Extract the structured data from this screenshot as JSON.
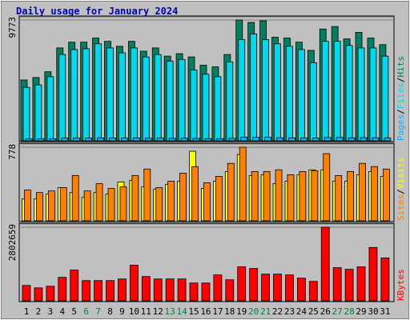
{
  "chart_data": [
    {
      "type": "bar",
      "title": "Daily usage for January 2024",
      "ylim": [
        0,
        9773
      ],
      "yticks": [
        9773
      ],
      "legend_separator": "/",
      "series": [
        {
          "name": "Hits",
          "color": "#008060",
          "values": [
            4921,
            5120,
            5586,
            7514,
            7980,
            7980,
            8312,
            8046,
            7647,
            8046,
            7248,
            7514,
            6849,
            7049,
            6783,
            6118,
            5985,
            6982,
            9773,
            9576,
            9709,
            8379,
            8312,
            7980,
            7315,
            9044,
            9243,
            8246,
            8778,
            8312,
            7780
          ]
        },
        {
          "name": "Files",
          "color": "#00d8f0",
          "values": [
            4322,
            4522,
            5187,
            6983,
            7382,
            7448,
            7847,
            7515,
            7116,
            7515,
            6783,
            6983,
            6451,
            6584,
            5719,
            5387,
            5187,
            6384,
            8180,
            8645,
            8180,
            7847,
            7648,
            7382,
            6318,
            8047,
            8047,
            7714,
            7515,
            7515,
            6850
          ]
        },
        {
          "name": "Pages",
          "color": "#00b8ff",
          "values": [
            150,
            160,
            170,
            220,
            230,
            230,
            240,
            235,
            225,
            235,
            210,
            220,
            200,
            205,
            195,
            180,
            175,
            200,
            290,
            280,
            285,
            245,
            240,
            230,
            215,
            265,
            270,
            240,
            255,
            240,
            225
          ]
        }
      ]
    },
    {
      "type": "bar",
      "ylim": [
        0,
        778
      ],
      "yticks": [
        778
      ],
      "legend_separator": "/",
      "series": [
        {
          "name": "Visits",
          "color": "#ffff00",
          "values": [
            231,
            231,
            282,
            351,
            299,
            248,
            299,
            282,
            410,
            428,
            359,
            333,
            385,
            419,
            735,
            342,
            419,
            521,
            701,
            479,
            487,
            393,
            419,
            487,
            539,
            539,
            419,
            419,
            487,
            521,
            470
          ]
        },
        {
          "name": "Sites",
          "color": "#ff8000",
          "values": [
            325,
            299,
            316,
            351,
            479,
            316,
            393,
            342,
            359,
            479,
            547,
            351,
            419,
            504,
            573,
            402,
            470,
            607,
            778,
            521,
            521,
            539,
            487,
            521,
            530,
            710,
            479,
            521,
            607,
            573,
            547
          ]
        }
      ]
    },
    {
      "type": "bar",
      "ylim": [
        0,
        2802659
      ],
      "yticks": [
        2802659
      ],
      "categories": [
        "1",
        "2",
        "3",
        "4",
        "5",
        "6",
        "7",
        "8",
        "9",
        "10",
        "11",
        "12",
        "13",
        "14",
        "15",
        "16",
        "17",
        "18",
        "19",
        "20",
        "21",
        "22",
        "23",
        "24",
        "25",
        "26",
        "27",
        "28",
        "29",
        "30",
        "31"
      ],
      "category_colors": [
        "#000000",
        "#000000",
        "#000000",
        "#000000",
        "#000000",
        "#008040",
        "#008040",
        "#000000",
        "#000000",
        "#000000",
        "#000000",
        "#000000",
        "#008040",
        "#008040",
        "#000000",
        "#000000",
        "#000000",
        "#000000",
        "#000000",
        "#008040",
        "#008040",
        "#000000",
        "#000000",
        "#000000",
        "#000000",
        "#000000",
        "#008040",
        "#008040",
        "#000000",
        "#000000",
        "#000000"
      ],
      "series": [
        {
          "name": "KBytes",
          "color": "#ff0000",
          "values": [
            585162,
            492768,
            554364,
            893142,
            1170324,
            769950,
            769950,
            769950,
            831546,
            1355112,
            923940,
            831546,
            831546,
            831546,
            677556,
            677556,
            985536,
            800748,
            1293516,
            1231920,
            1016334,
            1016334,
            985536,
            862344,
            739152,
            2802659,
            1262718,
            1201122,
            1293516,
            2032668,
            1632294
          ]
        }
      ]
    }
  ]
}
